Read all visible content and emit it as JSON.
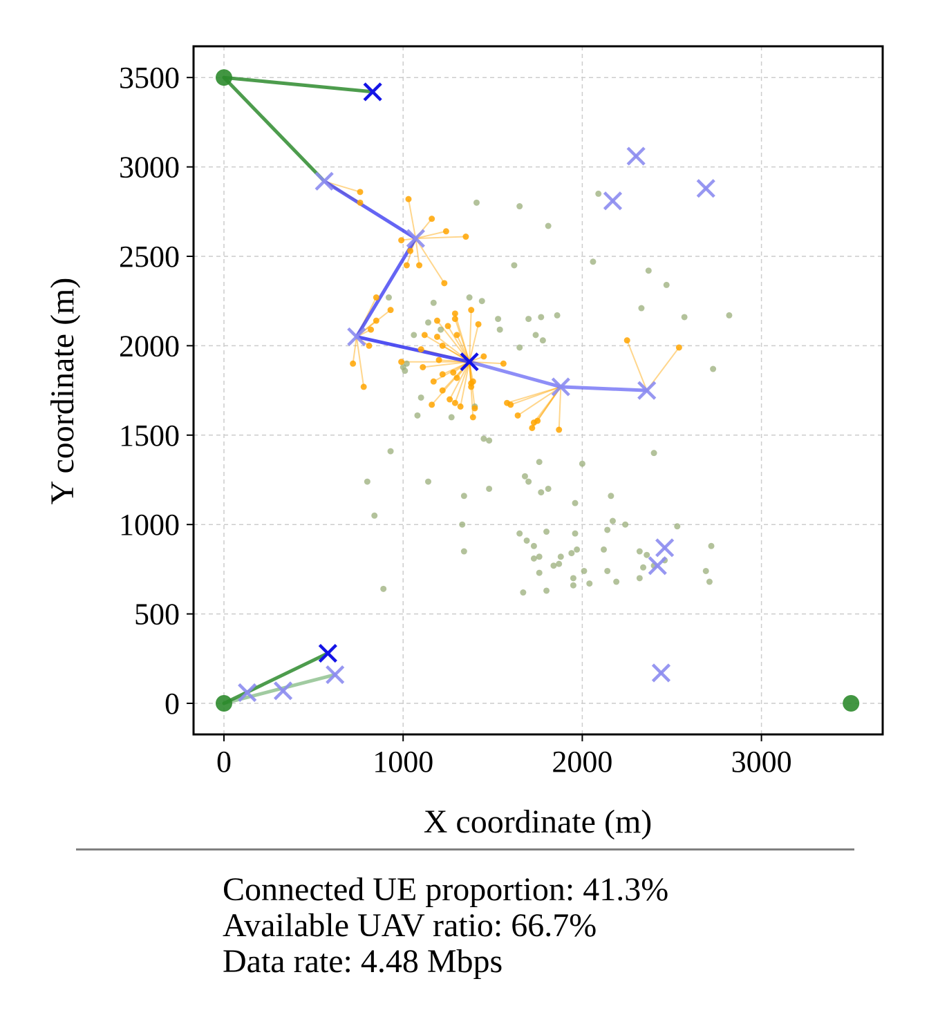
{
  "chart_data": {
    "type": "scatter",
    "title": "",
    "xlabel": "X coordinate (m)",
    "ylabel": "Y coordinate (m)",
    "xlim": [
      -170,
      3680
    ],
    "ylim": [
      -170,
      3680
    ],
    "xticks": [
      0,
      1000,
      2000,
      3000
    ],
    "yticks": [
      0,
      500,
      1000,
      1500,
      2000,
      2500,
      3000,
      3500
    ],
    "grid": true,
    "colors": {
      "base_station": "#2e8b2e",
      "uav_active": "#1414e6",
      "uav_available": "#8c8cf0",
      "ue_connected": "#ffa500",
      "ue_unconnected": "#9aae7a",
      "backhaul": "#2e8b2e",
      "relay": "#3232f0"
    },
    "base_stations": [
      [
        0,
        3500
      ],
      [
        0,
        0
      ],
      [
        3500,
        0
      ]
    ],
    "uav_active": [
      [
        830,
        3420
      ],
      [
        1370,
        1910
      ],
      [
        580,
        280
      ]
    ],
    "uav_available": [
      [
        560,
        2920
      ],
      [
        1070,
        2600
      ],
      [
        740,
        2050
      ],
      [
        1880,
        1770
      ],
      [
        2360,
        1750
      ],
      [
        2300,
        3060
      ],
      [
        2170,
        2810
      ],
      [
        2690,
        2880
      ],
      [
        2460,
        870
      ],
      [
        2420,
        770
      ],
      [
        2440,
        170
      ],
      [
        620,
        160
      ],
      [
        130,
        60
      ],
      [
        330,
        70
      ]
    ],
    "backhaul_links": [
      {
        "from": [
          0,
          3500
        ],
        "to": [
          830,
          3420
        ],
        "alpha": 0.85
      },
      {
        "from": [
          0,
          3500
        ],
        "to": [
          560,
          2920
        ],
        "alpha": 0.85
      },
      {
        "from": [
          0,
          0
        ],
        "to": [
          580,
          280
        ],
        "alpha": 0.85
      },
      {
        "from": [
          0,
          0
        ],
        "to": [
          620,
          160
        ],
        "alpha": 0.45
      }
    ],
    "relay_links": [
      {
        "from": [
          560,
          2920
        ],
        "to": [
          1070,
          2600
        ],
        "alpha": 0.75
      },
      {
        "from": [
          1070,
          2600
        ],
        "to": [
          740,
          2050
        ],
        "alpha": 0.75
      },
      {
        "from": [
          740,
          2050
        ],
        "to": [
          1370,
          1910
        ],
        "alpha": 0.85
      },
      {
        "from": [
          1370,
          1910
        ],
        "to": [
          1880,
          1770
        ],
        "alpha": 0.55
      },
      {
        "from": [
          1880,
          1770
        ],
        "to": [
          2360,
          1750
        ],
        "alpha": 0.55
      }
    ],
    "ue_connected": [
      {
        "hub": [
          560,
          2920
        ],
        "points": [
          [
            760,
            2860
          ],
          [
            760,
            2800
          ]
        ]
      },
      {
        "hub": [
          1070,
          2600
        ],
        "points": [
          [
            1030,
            2820
          ],
          [
            1160,
            2710
          ],
          [
            1240,
            2640
          ],
          [
            1350,
            2610
          ],
          [
            990,
            2590
          ],
          [
            1040,
            2530
          ],
          [
            1020,
            2450
          ],
          [
            1090,
            2450
          ],
          [
            1230,
            2350
          ]
        ]
      },
      {
        "hub": [
          740,
          2050
        ],
        "points": [
          [
            850,
            2270
          ],
          [
            930,
            2200
          ],
          [
            850,
            2140
          ],
          [
            820,
            2090
          ],
          [
            720,
            1900
          ],
          [
            780,
            1770
          ],
          [
            810,
            2000
          ]
        ]
      },
      {
        "hub": [
          1370,
          1910
        ],
        "points": [
          [
            1380,
            2200
          ],
          [
            1290,
            2180
          ],
          [
            1290,
            2150
          ],
          [
            1190,
            2140
          ],
          [
            1420,
            2120
          ],
          [
            1250,
            2110
          ],
          [
            1120,
            2060
          ],
          [
            1300,
            2060
          ],
          [
            1190,
            2050
          ],
          [
            1220,
            2000
          ],
          [
            1100,
            1980
          ],
          [
            990,
            1910
          ],
          [
            1200,
            1920
          ],
          [
            1450,
            1940
          ],
          [
            1560,
            1900
          ],
          [
            1110,
            1880
          ],
          [
            1280,
            1850
          ],
          [
            1220,
            1840
          ],
          [
            1300,
            1820
          ],
          [
            1390,
            1800
          ],
          [
            1380,
            1790
          ],
          [
            1170,
            1800
          ],
          [
            1380,
            1770
          ],
          [
            1220,
            1750
          ],
          [
            1260,
            1700
          ],
          [
            1160,
            1670
          ],
          [
            1290,
            1680
          ],
          [
            1320,
            1660
          ],
          [
            1400,
            1650
          ],
          [
            1390,
            1600
          ]
        ]
      },
      {
        "hub": [
          1880,
          1770
        ],
        "points": [
          [
            1580,
            1680
          ],
          [
            1600,
            1670
          ],
          [
            1640,
            1610
          ],
          [
            1730,
            1570
          ],
          [
            1750,
            1580
          ],
          [
            1720,
            1540
          ],
          [
            1870,
            1530
          ]
        ]
      },
      {
        "hub": [
          2360,
          1750
        ],
        "points": [
          [
            2250,
            2030
          ],
          [
            2540,
            1990
          ]
        ]
      }
    ],
    "ue_unconnected": [
      [
        1410,
        2800
      ],
      [
        1650,
        2780
      ],
      [
        1810,
        2670
      ],
      [
        2090,
        2850
      ],
      [
        1620,
        2450
      ],
      [
        2060,
        2470
      ],
      [
        2370,
        2420
      ],
      [
        2470,
        2340
      ],
      [
        2330,
        2210
      ],
      [
        2570,
        2160
      ],
      [
        2820,
        2170
      ],
      [
        920,
        2270
      ],
      [
        1170,
        2240
      ],
      [
        1370,
        2270
      ],
      [
        1440,
        2250
      ],
      [
        1530,
        2150
      ],
      [
        1700,
        2150
      ],
      [
        1770,
        2160
      ],
      [
        1860,
        2170
      ],
      [
        1140,
        2130
      ],
      [
        1060,
        2060
      ],
      [
        1210,
        2090
      ],
      [
        1540,
        2090
      ],
      [
        1740,
        2060
      ],
      [
        1650,
        1990
      ],
      [
        1780,
        2030
      ],
      [
        1020,
        1900
      ],
      [
        1000,
        1880
      ],
      [
        1010,
        1860
      ],
      [
        2730,
        1870
      ],
      [
        1100,
        1710
      ],
      [
        1400,
        1660
      ],
      [
        1080,
        1610
      ],
      [
        1270,
        1600
      ],
      [
        1450,
        1480
      ],
      [
        1480,
        1470
      ],
      [
        930,
        1410
      ],
      [
        2400,
        1400
      ],
      [
        1760,
        1350
      ],
      [
        2000,
        1340
      ],
      [
        800,
        1240
      ],
      [
        1140,
        1240
      ],
      [
        1680,
        1270
      ],
      [
        1700,
        1240
      ],
      [
        1480,
        1200
      ],
      [
        1770,
        1180
      ],
      [
        1810,
        1200
      ],
      [
        1340,
        1160
      ],
      [
        2160,
        1160
      ],
      [
        1960,
        1120
      ],
      [
        840,
        1050
      ],
      [
        1330,
        1000
      ],
      [
        2170,
        1020
      ],
      [
        2240,
        1000
      ],
      [
        2140,
        970
      ],
      [
        1650,
        950
      ],
      [
        1800,
        960
      ],
      [
        1960,
        950
      ],
      [
        2530,
        990
      ],
      [
        1690,
        910
      ],
      [
        1730,
        880
      ],
      [
        1340,
        850
      ],
      [
        1880,
        820
      ],
      [
        1940,
        840
      ],
      [
        1970,
        860
      ],
      [
        2120,
        860
      ],
      [
        2320,
        850
      ],
      [
        2360,
        830
      ],
      [
        2460,
        800
      ],
      [
        1730,
        810
      ],
      [
        1760,
        820
      ],
      [
        1840,
        770
      ],
      [
        1870,
        780
      ],
      [
        2400,
        770
      ],
      [
        2340,
        760
      ],
      [
        2140,
        740
      ],
      [
        2010,
        740
      ],
      [
        1950,
        700
      ],
      [
        2320,
        700
      ],
      [
        2690,
        740
      ],
      [
        1760,
        730
      ],
      [
        1950,
        660
      ],
      [
        2040,
        670
      ],
      [
        2190,
        680
      ],
      [
        2710,
        680
      ],
      [
        890,
        640
      ],
      [
        1670,
        620
      ],
      [
        1800,
        630
      ],
      [
        2720,
        880
      ]
    ]
  },
  "stats": {
    "connected_ue": "Connected UE proportion: 41.3%",
    "available_uav": "Available UAV ratio: 66.7%",
    "data_rate": "Data rate: 4.48 Mbps"
  }
}
